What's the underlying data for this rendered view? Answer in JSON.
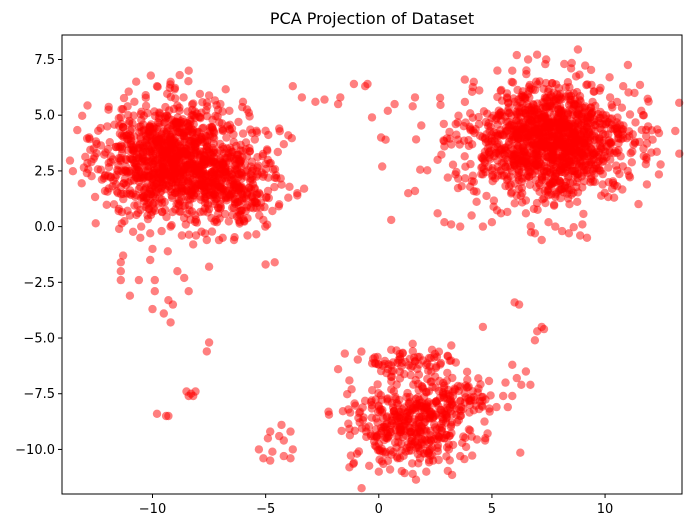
{
  "chart_data": {
    "type": "scatter",
    "title": "PCA Projection of Dataset",
    "xlabel": "",
    "ylabel": "",
    "xlim": [
      -14.0,
      13.4
    ],
    "ylim": [
      -12.0,
      8.6
    ],
    "xticks": [
      -10,
      -5,
      0,
      5,
      10
    ],
    "xtick_labels": [
      "−10",
      "−5",
      "0",
      "5",
      "10"
    ],
    "yticks": [
      -10.0,
      -7.5,
      -5.0,
      -2.5,
      0.0,
      2.5,
      5.0,
      7.5
    ],
    "ytick_labels": [
      "−10.0",
      "−7.5",
      "−5.0",
      "−2.5",
      "0.0",
      "2.5",
      "5.0",
      "7.5"
    ],
    "grid": false,
    "marker_color": "#ff0000",
    "marker_alpha": 0.5,
    "clusters": [
      {
        "center": [
          -9.0,
          3.0
        ],
        "spread": [
          1.6,
          1.25
        ],
        "count": 1100
      },
      {
        "center": [
          -6.3,
          1.8
        ],
        "spread": [
          0.9,
          1.0
        ],
        "count": 220
      },
      {
        "center": [
          7.6,
          3.8
        ],
        "spread": [
          1.8,
          1.25
        ],
        "count": 1300
      },
      {
        "center": [
          1.4,
          -8.8
        ],
        "spread": [
          1.3,
          1.0
        ],
        "count": 420
      },
      {
        "center": [
          1.2,
          -6.1
        ],
        "spread": [
          1.0,
          0.35
        ],
        "count": 70
      },
      {
        "center": [
          3.2,
          -7.6
        ],
        "spread": [
          1.0,
          0.45
        ],
        "count": 70
      }
    ],
    "points": [
      [
        -3.8,
        6.3
      ],
      [
        -3.4,
        5.8
      ],
      [
        -2.8,
        5.6
      ],
      [
        -2.4,
        5.7
      ],
      [
        -1.7,
        5.8
      ],
      [
        -1.1,
        6.4
      ],
      [
        -0.6,
        6.3
      ],
      [
        -0.5,
        6.4
      ],
      [
        -1.8,
        5.5
      ],
      [
        0.4,
        5.2
      ],
      [
        0.7,
        5.5
      ],
      [
        1.5,
        5.4
      ],
      [
        1.6,
        5.8
      ],
      [
        -0.3,
        4.9
      ],
      [
        0.1,
        4.0
      ],
      [
        0.3,
        3.9
      ],
      [
        1.3,
        1.5
      ],
      [
        1.6,
        1.6
      ],
      [
        -3.3,
        1.7
      ],
      [
        -3.6,
        1.5
      ],
      [
        -4.6,
        -1.6
      ],
      [
        -5.0,
        -1.7
      ],
      [
        -11.3,
        -1.3
      ],
      [
        -11.4,
        -1.6
      ],
      [
        -11.4,
        -2.0
      ],
      [
        -11.4,
        -2.4
      ],
      [
        -11.0,
        -3.1
      ],
      [
        -10.6,
        -2.4
      ],
      [
        -10.0,
        -1.0
      ],
      [
        -10.1,
        -1.5
      ],
      [
        -9.9,
        -2.4
      ],
      [
        -9.9,
        -2.9
      ],
      [
        -10.0,
        -3.7
      ],
      [
        -9.5,
        -3.9
      ],
      [
        -9.3,
        -3.3
      ],
      [
        -8.9,
        -2.0
      ],
      [
        -8.6,
        -2.3
      ],
      [
        -8.4,
        -2.9
      ],
      [
        -9.1,
        -3.5
      ],
      [
        -9.2,
        -4.3
      ],
      [
        -7.5,
        -5.2
      ],
      [
        -7.6,
        -5.6
      ],
      [
        -7.5,
        -1.8
      ],
      [
        -8.5,
        -7.4
      ],
      [
        -8.3,
        -7.5
      ],
      [
        -8.4,
        -7.6
      ],
      [
        -8.1,
        -7.4
      ],
      [
        -8.2,
        -7.6
      ],
      [
        -9.8,
        -8.4
      ],
      [
        -9.4,
        -8.5
      ],
      [
        -9.3,
        -8.5
      ],
      [
        -5.3,
        -10.0
      ],
      [
        -5.1,
        -10.4
      ],
      [
        -4.9,
        -9.5
      ],
      [
        -4.8,
        -9.2
      ],
      [
        -4.7,
        -10.1
      ],
      [
        -4.8,
        -10.5
      ],
      [
        -4.4,
        -9.4
      ],
      [
        -4.3,
        -8.9
      ],
      [
        -4.2,
        -9.6
      ],
      [
        -4.2,
        -10.3
      ],
      [
        -3.9,
        -9.2
      ],
      [
        -3.8,
        -10.0
      ],
      [
        -3.9,
        -10.4
      ],
      [
        -1.8,
        -6.4
      ],
      [
        -1.5,
        -5.7
      ],
      [
        -1.3,
        -6.9
      ],
      [
        -1.2,
        -7.3
      ],
      [
        4.6,
        -4.5
      ],
      [
        6.0,
        -3.4
      ],
      [
        6.2,
        -3.5
      ],
      [
        6.9,
        -5.1
      ],
      [
        7.0,
        -4.7
      ],
      [
        7.2,
        -4.5
      ],
      [
        7.3,
        -4.6
      ],
      [
        5.9,
        -6.2
      ],
      [
        6.1,
        -6.8
      ],
      [
        6.5,
        -6.5
      ],
      [
        6.7,
        -7.1
      ],
      [
        5.6,
        -7.0
      ],
      [
        5.9,
        -7.6
      ],
      [
        6.3,
        -7.1
      ],
      [
        4.9,
        -8.3
      ],
      [
        5.2,
        -8.1
      ],
      [
        5.5,
        -7.6
      ],
      [
        5.7,
        -8.1
      ],
      [
        4.7,
        -9.6
      ],
      [
        3.6,
        -10.3
      ],
      [
        3.1,
        -10.0
      ],
      [
        0.0,
        -11.0
      ],
      [
        0.5,
        -10.9
      ],
      [
        1.5,
        -11.1
      ],
      [
        2.1,
        -11.0
      ],
      [
        2.4,
        -10.5
      ],
      [
        -1.1,
        -10.6
      ],
      [
        -1.3,
        -10.8
      ],
      [
        2.6,
        0.6
      ],
      [
        2.9,
        0.2
      ],
      [
        3.2,
        0.1
      ],
      [
        3.6,
        0.0
      ],
      [
        2.6,
        3.0
      ],
      [
        2.9,
        3.6
      ],
      [
        3.4,
        4.6
      ],
      [
        3.5,
        3.9
      ],
      [
        3.8,
        6.6
      ],
      [
        4.2,
        6.5
      ],
      [
        5.9,
        7.0
      ],
      [
        6.1,
        7.7
      ],
      [
        6.6,
        7.5
      ],
      [
        7.4,
        7.5
      ],
      [
        8.2,
        7.3
      ],
      [
        8.5,
        7.1
      ],
      [
        7.5,
        0.2
      ],
      [
        7.8,
        0.0
      ],
      [
        8.1,
        -0.2
      ],
      [
        8.4,
        -0.3
      ],
      [
        8.9,
        -0.4
      ],
      [
        9.2,
        -0.5
      ],
      [
        9.0,
        0.1
      ],
      [
        7.2,
        -0.6
      ],
      [
        6.9,
        -0.3
      ],
      [
        6.5,
        0.6
      ],
      [
        5.0,
        0.2
      ],
      [
        5.4,
        0.6
      ],
      [
        4.6,
        0.0
      ],
      [
        4.1,
        0.5
      ],
      [
        10.4,
        1.3
      ],
      [
        11.0,
        2.5
      ],
      [
        11.7,
        3.5
      ],
      [
        12.1,
        3.9
      ],
      [
        11.9,
        4.5
      ],
      [
        11.6,
        5.2
      ],
      [
        11.3,
        6.0
      ],
      [
        10.8,
        6.3
      ],
      [
        10.2,
        6.7
      ],
      [
        11.8,
        2.8
      ],
      [
        -12.9,
        2.4
      ],
      [
        -12.7,
        2.9
      ],
      [
        -12.6,
        3.5
      ],
      [
        -12.8,
        4.0
      ],
      [
        -12.4,
        4.3
      ],
      [
        -12.0,
        4.5
      ],
      [
        -11.4,
        4.9
      ],
      [
        -11.1,
        5.4
      ],
      [
        -10.8,
        5.6
      ],
      [
        -10.3,
        5.9
      ],
      [
        -9.8,
        6.3
      ],
      [
        -9.2,
        6.5
      ],
      [
        -8.8,
        6.8
      ],
      [
        -8.4,
        7.0
      ],
      [
        -12.1,
        1.6
      ],
      [
        -11.7,
        1.0
      ],
      [
        -11.5,
        0.7
      ],
      [
        -11.0,
        0.5
      ],
      [
        -10.5,
        0.0
      ],
      [
        -10.1,
        -0.3
      ],
      [
        -9.6,
        -0.2
      ],
      [
        -9.2,
        0.0
      ],
      [
        -8.7,
        -0.4
      ],
      [
        -8.2,
        -0.8
      ],
      [
        -7.6,
        -0.6
      ],
      [
        -6.9,
        -0.5
      ],
      [
        -6.4,
        -0.6
      ],
      [
        -5.8,
        -0.4
      ],
      [
        -5.1,
        0.3
      ],
      [
        -4.7,
        0.7
      ],
      [
        -4.4,
        1.0
      ],
      [
        -4.0,
        1.3
      ],
      [
        -3.6,
        1.4
      ],
      [
        -4.6,
        2.2
      ],
      [
        -4.9,
        3.0
      ],
      [
        -4.2,
        3.7
      ],
      [
        -4.0,
        4.1
      ],
      [
        -4.4,
        4.4
      ],
      [
        -5.0,
        4.3
      ],
      [
        -5.6,
        4.2
      ],
      [
        -6.2,
        4.7
      ],
      [
        -6.6,
        5.2
      ],
      [
        -7.0,
        5.5
      ],
      [
        -6.0,
        5.6
      ]
    ]
  }
}
